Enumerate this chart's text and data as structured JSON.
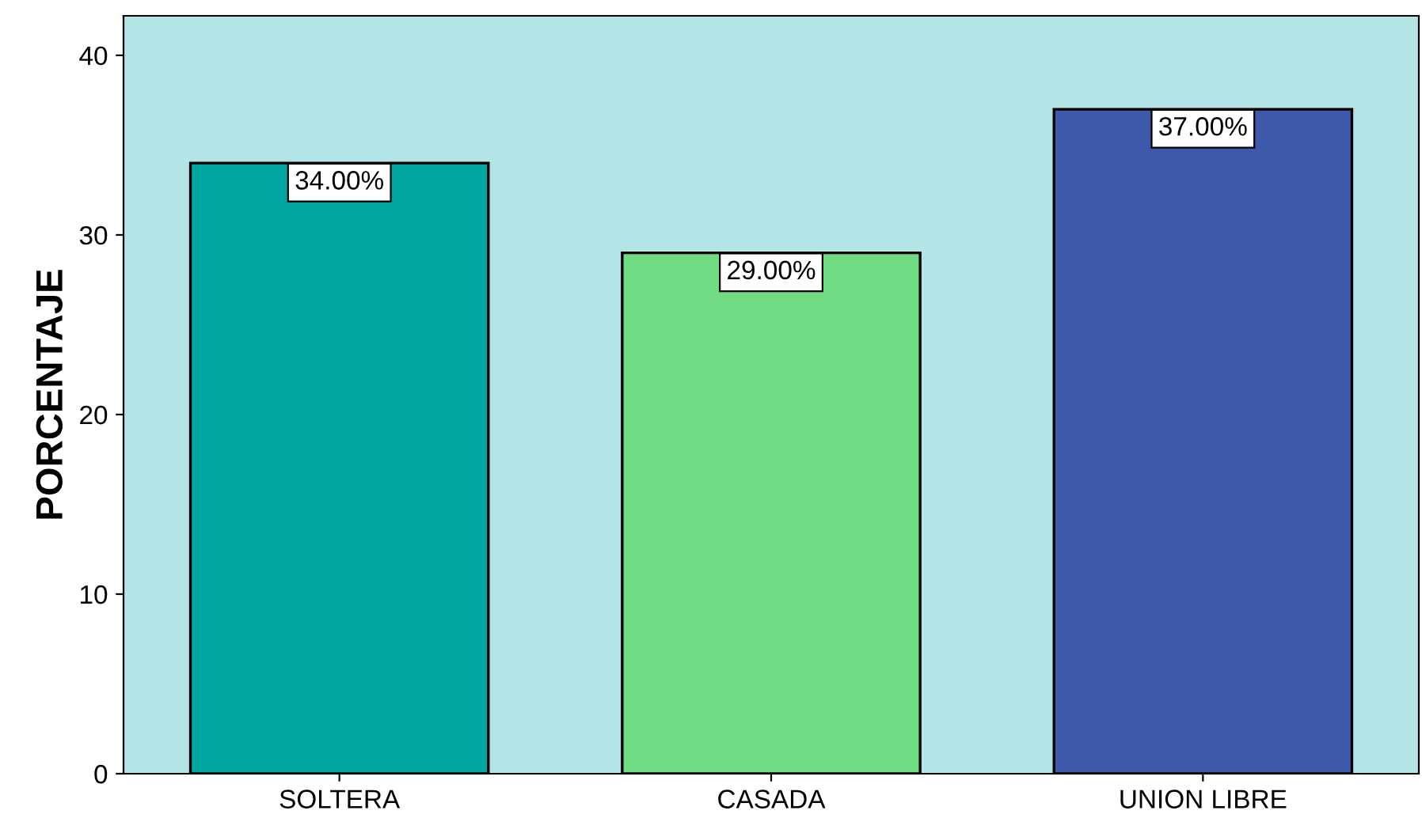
{
  "chart_data": {
    "type": "bar",
    "ylabel": "PORCENTAJE",
    "categories": [
      "SOLTERA",
      "CASADA",
      "UNION LIBRE"
    ],
    "values": [
      34,
      29,
      37
    ],
    "colors": [
      "#00a6a0",
      "#70dc84",
      "#3e58aa"
    ],
    "value_labels": [
      "34.00%",
      "29.00%",
      "37.00%"
    ],
    "ylim": [
      0,
      42.2
    ],
    "yticks": [
      0,
      10,
      20,
      30,
      40
    ],
    "grid": false,
    "legend": false
  }
}
